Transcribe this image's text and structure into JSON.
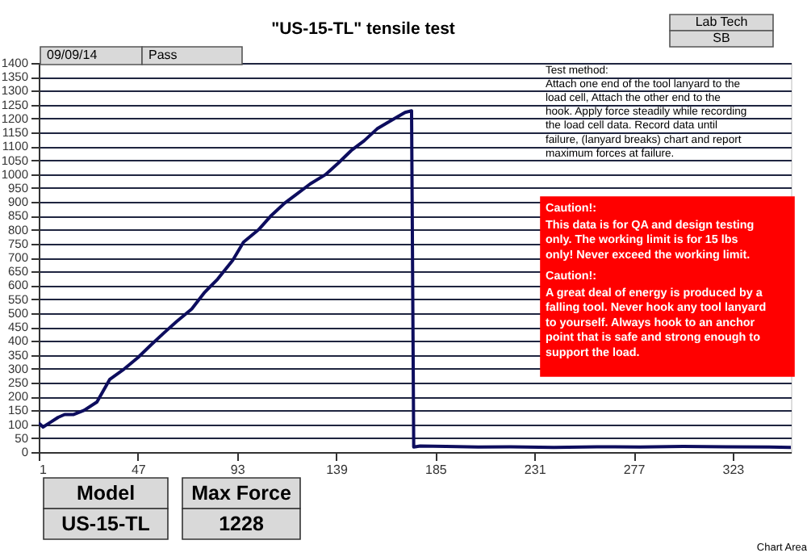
{
  "chart_data": {
    "type": "line",
    "title": "\"US-15-TL\"  tensile test",
    "x": [
      1,
      3,
      6,
      10,
      13,
      17,
      22,
      28,
      34,
      40,
      47,
      53,
      59,
      65,
      72,
      78,
      84,
      91,
      96,
      103,
      109,
      115,
      121,
      127,
      134,
      140,
      146,
      152,
      158,
      165,
      171,
      174,
      175,
      178,
      190,
      205,
      220,
      240,
      260,
      280,
      300,
      320,
      340,
      350
    ],
    "values": [
      105,
      90,
      105,
      125,
      135,
      135,
      150,
      180,
      262,
      295,
      340,
      385,
      428,
      470,
      515,
      575,
      622,
      690,
      755,
      800,
      852,
      895,
      930,
      965,
      998,
      1040,
      1085,
      1120,
      1163,
      1195,
      1222,
      1228,
      18,
      22,
      20,
      18,
      19,
      17,
      19,
      18,
      20,
      19,
      18,
      17
    ],
    "color": "#0d0d5e",
    "xlim": [
      1,
      350
    ],
    "xticks": [
      1,
      47,
      93,
      139,
      185,
      231,
      277,
      323
    ],
    "ylim": [
      0,
      1400
    ],
    "yticks": [
      0,
      50,
      100,
      150,
      200,
      250,
      300,
      350,
      400,
      450,
      500,
      550,
      600,
      650,
      700,
      750,
      800,
      850,
      900,
      950,
      1000,
      1050,
      1100,
      1150,
      1200,
      1250,
      1300,
      1350,
      1400
    ],
    "grid": "y",
    "annotations": [
      "09/09/14",
      "Pass",
      "Lab Tech",
      "SB",
      "Test method:",
      "Attach one end of the tool lanyard to the load cell, Attach the other end to the hook. Apply force steadily while recording the load cell data.  Record data until failure, (lanyard breaks) chart and report maximum forces at failure.",
      "Caution!:",
      "This data is for QA and design testing only. The working  limit  is for 15 lbs only!  Never exceed the working limit.",
      "Caution!:",
      "A great deal of energy is produced by a falling tool. Never hook any tool lanyard to yourself.  Always hook to an anchor point that is safe and strong enough to support the load.",
      "Model",
      "US-15-TL",
      "Max Force",
      "1228",
      "Chart Area"
    ]
  }
}
